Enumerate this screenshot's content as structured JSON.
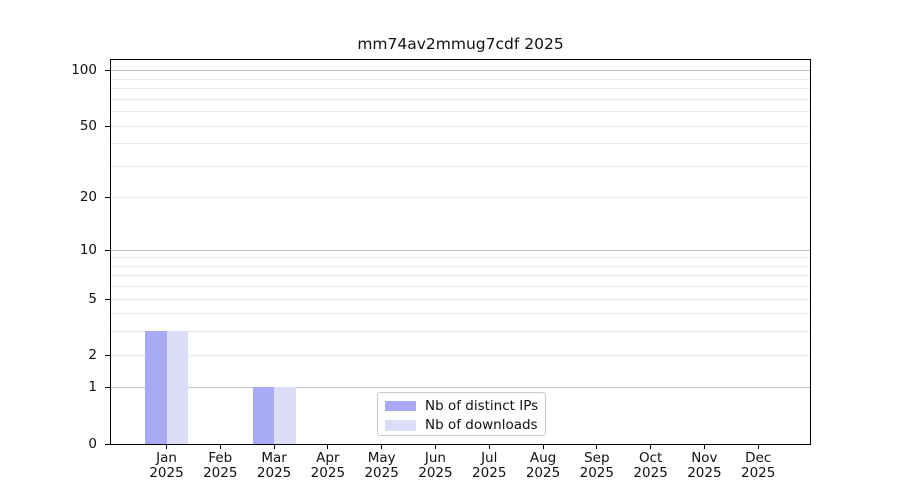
{
  "legend": {
    "items": [
      {
        "label": "Nb of distinct IPs",
        "color": "#a9aaf5"
      },
      {
        "label": "Nb of downloads",
        "color": "#dcddf8"
      }
    ],
    "position": "lower center",
    "border_color": "#c9c9c9"
  },
  "chart_data": {
    "type": "bar",
    "title": "mm74av2mmug7cdf 2025",
    "categories": [
      "Jan",
      "Feb",
      "Mar",
      "Apr",
      "May",
      "Jun",
      "Jul",
      "Aug",
      "Sep",
      "Oct",
      "Nov",
      "Dec"
    ],
    "year": "2025",
    "series": [
      {
        "name": "Nb of distinct IPs",
        "color": "#a9aaf5",
        "values": [
          3,
          0,
          1,
          0,
          0,
          0,
          0,
          0,
          0,
          0,
          0,
          0
        ]
      },
      {
        "name": "Nb of downloads",
        "color": "#dcddf8",
        "values": [
          3,
          0,
          1,
          0,
          0,
          0,
          0,
          0,
          0,
          0,
          0,
          0
        ]
      }
    ],
    "y_scale": "log10(1+x)",
    "y_ticks": [
      0,
      1,
      2,
      5,
      10,
      20,
      50,
      100
    ],
    "y_major_gridlines": [
      1,
      10,
      100
    ],
    "y_minor_gridlines": [
      2,
      3,
      4,
      5,
      6,
      7,
      8,
      9,
      20,
      30,
      40,
      50,
      60,
      70,
      80,
      90
    ],
    "ylim": [
      0,
      114
    ],
    "xlabel": "",
    "ylabel": "",
    "grid": "horizontal",
    "legend_position": "lower center",
    "colors": {
      "major_grid": "#c2c2c2",
      "minor_grid": "#e9e9e9",
      "axis": "#000000",
      "background": "#ffffff"
    }
  }
}
